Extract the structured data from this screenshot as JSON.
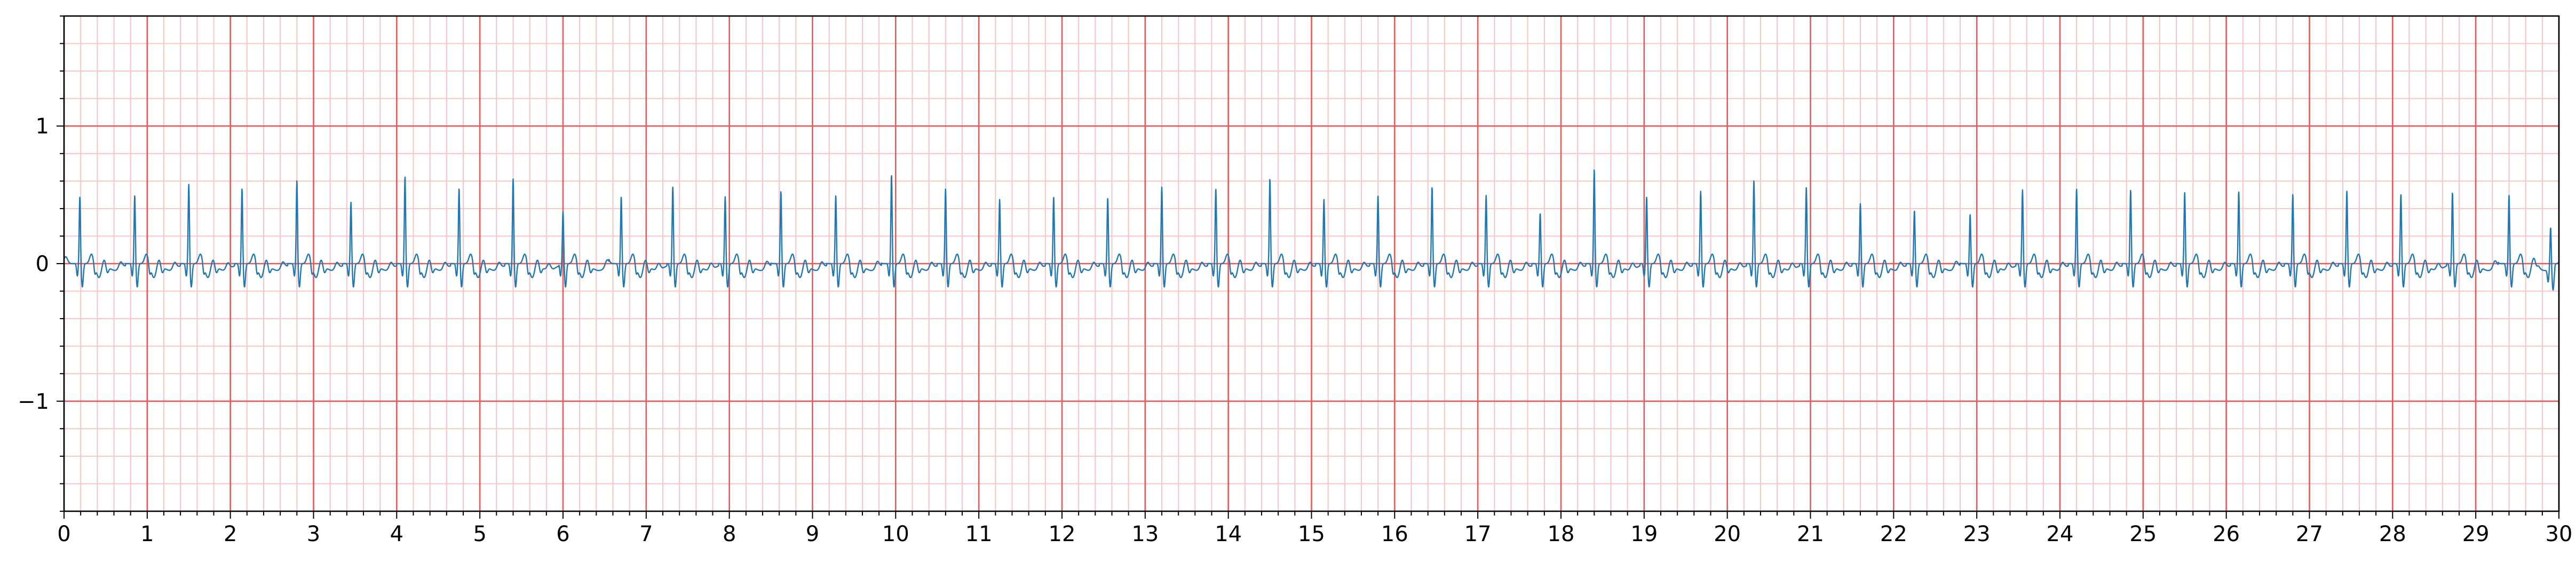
{
  "chart_data": {
    "type": "line",
    "title": "",
    "xlabel": "",
    "ylabel": "",
    "xlim": [
      0,
      30
    ],
    "ylim": [
      -1.8,
      1.8
    ],
    "x_ticks": [
      "0",
      "1",
      "2",
      "3",
      "4",
      "5",
      "6",
      "7",
      "8",
      "9",
      "10",
      "11",
      "12",
      "13",
      "14",
      "15",
      "16",
      "17",
      "18",
      "19",
      "20",
      "21",
      "22",
      "23",
      "24",
      "25",
      "26",
      "27",
      "28",
      "29",
      "30"
    ],
    "y_ticks": [
      {
        "value": 1,
        "label": "1"
      },
      {
        "value": 0,
        "label": "0"
      },
      {
        "value": -1,
        "label": "−1"
      }
    ],
    "grid": {
      "major_x": 1,
      "major_y": 1,
      "minor_x": 0.2,
      "minor_y": 0.2,
      "major_color": "#e85a5a",
      "minor_color": "#f9c4c4"
    },
    "series": [
      {
        "color": "#1f77b4",
        "r_peaks": [
          [
            0.19,
            0.49
          ],
          [
            0.85,
            0.5
          ],
          [
            1.5,
            0.58
          ],
          [
            2.14,
            0.55
          ],
          [
            2.8,
            0.61
          ],
          [
            3.45,
            0.45
          ],
          [
            4.1,
            0.64
          ],
          [
            4.75,
            0.55
          ],
          [
            5.4,
            0.62
          ],
          [
            6.0,
            0.38
          ],
          [
            6.7,
            0.49
          ],
          [
            7.32,
            0.56
          ],
          [
            7.95,
            0.49
          ],
          [
            8.62,
            0.53
          ],
          [
            9.28,
            0.5
          ],
          [
            9.95,
            0.65
          ],
          [
            10.6,
            0.55
          ],
          [
            11.25,
            0.47
          ],
          [
            11.9,
            0.49
          ],
          [
            12.55,
            0.48
          ],
          [
            13.2,
            0.56
          ],
          [
            13.85,
            0.55
          ],
          [
            14.5,
            0.62
          ],
          [
            15.15,
            0.47
          ],
          [
            15.8,
            0.5
          ],
          [
            16.45,
            0.56
          ],
          [
            17.1,
            0.5
          ],
          [
            17.75,
            0.37
          ],
          [
            18.4,
            0.69
          ],
          [
            19.03,
            0.49
          ],
          [
            19.68,
            0.53
          ],
          [
            20.32,
            0.61
          ],
          [
            20.95,
            0.56
          ],
          [
            21.6,
            0.44
          ],
          [
            22.25,
            0.39
          ],
          [
            22.92,
            0.36
          ],
          [
            23.55,
            0.54
          ],
          [
            24.2,
            0.55
          ],
          [
            24.85,
            0.54
          ],
          [
            25.5,
            0.52
          ],
          [
            26.15,
            0.53
          ],
          [
            26.8,
            0.51
          ],
          [
            27.45,
            0.53
          ],
          [
            28.1,
            0.51
          ],
          [
            28.72,
            0.52
          ],
          [
            29.4,
            0.5
          ],
          [
            29.9,
            0.3
          ]
        ]
      }
    ]
  }
}
